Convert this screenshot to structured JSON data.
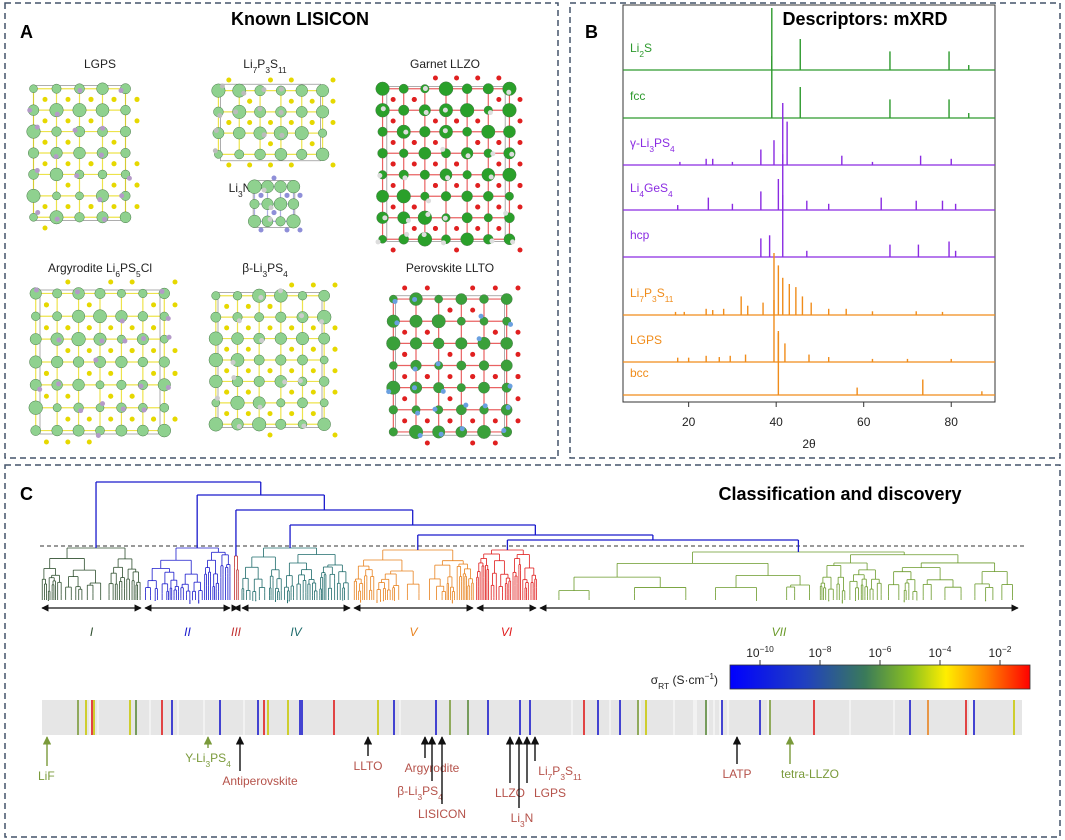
{
  "panel_a": {
    "label": "A",
    "title": "Known LISICON",
    "structures": [
      "LGPS",
      "Li7P3S11",
      "Garnet LLZO",
      "Li3N",
      "Argyrodite Li6PS5Cl",
      "β-Li3PS4",
      "Perovskite LLTO"
    ]
  },
  "panel_b": {
    "label": "B"
  },
  "chart_data": {
    "type": "line",
    "title": "Descriptors: mXRD",
    "x_label": "2θ",
    "xlim": [
      5,
      90
    ],
    "xticks": [
      20,
      40,
      60,
      80
    ],
    "series": [
      {
        "name": "Li2S",
        "color": "#2e9a2e",
        "peaks_x": [
          39,
          45.5,
          66,
          79.5,
          84
        ],
        "heights": [
          1,
          0.5,
          0.3,
          0.3,
          0.08
        ]
      },
      {
        "name": "fcc",
        "color": "#2e9a2e",
        "peaks_x": [
          39,
          45.5,
          66,
          79.5,
          84
        ],
        "heights": [
          1,
          0.5,
          0.3,
          0.3,
          0.08
        ]
      },
      {
        "name": "γ-Li3PS4",
        "color": "#8a2be2",
        "peaks_x": [
          18,
          24,
          25.5,
          30,
          36.5,
          39.5,
          41.5,
          42.5,
          55,
          62,
          73,
          80
        ],
        "heights": [
          0.05,
          0.1,
          0.1,
          0.05,
          0.25,
          0.4,
          1,
          0.7,
          0.15,
          0.05,
          0.15,
          0.1
        ]
      },
      {
        "name": "Li4GeS4",
        "color": "#8a2be2",
        "peaks_x": [
          17.5,
          24.5,
          30,
          36.5,
          40.5,
          41.5,
          47,
          52,
          64,
          72,
          78,
          81
        ],
        "heights": [
          0.08,
          0.2,
          0.1,
          0.3,
          0.5,
          0.9,
          0.15,
          0.1,
          0.2,
          0.15,
          0.15,
          0.1
        ]
      },
      {
        "name": "hcp",
        "color": "#8a2be2",
        "peaks_x": [
          36.5,
          38.5,
          41.5,
          47,
          66,
          72.5,
          79.5,
          81
        ],
        "heights": [
          0.3,
          0.35,
          1,
          0.1,
          0.2,
          0.2,
          0.25,
          0.1
        ]
      },
      {
        "name": "Li7P3S11",
        "color": "#f08c1a",
        "peaks_x": [
          17,
          19,
          24,
          25.5,
          28,
          32,
          33.5,
          37,
          39.5,
          40.5,
          41.5,
          43,
          44.5,
          46,
          48,
          52,
          56,
          62,
          72,
          78
        ],
        "heights": [
          0.05,
          0.05,
          0.1,
          0.08,
          0.1,
          0.3,
          0.15,
          0.2,
          1,
          0.8,
          0.6,
          0.5,
          0.45,
          0.3,
          0.2,
          0.1,
          0.1,
          0.06,
          0.06,
          0.05
        ]
      },
      {
        "name": "LGPS",
        "color": "#f08c1a",
        "peaks_x": [
          17.5,
          20,
          24,
          27,
          29.5,
          33,
          39.5,
          40.5,
          42,
          47.5,
          52,
          62,
          70,
          80
        ],
        "heights": [
          0.07,
          0.07,
          0.1,
          0.08,
          0.1,
          0.12,
          1,
          0.5,
          0.3,
          0.12,
          0.08,
          0.05,
          0.05,
          0.05
        ]
      },
      {
        "name": "bcc",
        "color": "#f08c1a",
        "peaks_x": [
          40.5,
          58.5,
          73.5,
          87
        ],
        "heights": [
          1,
          0.12,
          0.25,
          0.06
        ]
      }
    ]
  },
  "panel_c": {
    "label": "C",
    "title": "Classification and discovery",
    "clusters": [
      {
        "name": "I",
        "color": "#2f4f2f"
      },
      {
        "name": "II",
        "color": "#1a1acc"
      },
      {
        "name": "III",
        "color": "#c03030"
      },
      {
        "name": "IV",
        "color": "#1e6b6b"
      },
      {
        "name": "V",
        "color": "#e8821e"
      },
      {
        "name": "VI",
        "color": "#e01b1b"
      },
      {
        "name": "VII",
        "color": "#6a9a2a"
      }
    ],
    "colorbar": {
      "label": "σRT (S·cm−1)",
      "clim": [
        1e-11,
        0.1
      ],
      "ticks": [
        {
          "value": 1e-10,
          "label": "10−10"
        },
        {
          "value": 1e-08,
          "label": "10−8"
        },
        {
          "value": 1e-06,
          "label": "10−6"
        },
        {
          "value": 0.0001,
          "label": "10−4"
        },
        {
          "value": 0.01,
          "label": "10−2"
        }
      ]
    },
    "annotations": [
      {
        "text": "LiF",
        "color": "#7a9a3a"
      },
      {
        "text": "Y-Li3PS4",
        "color": "#7a9a3a"
      },
      {
        "text": "Antiperovskite",
        "color": "#b5524a"
      },
      {
        "text": "LLTO",
        "color": "#b5524a"
      },
      {
        "text": "Argyrodite",
        "color": "#b5524a"
      },
      {
        "text": "β-Li3PS4",
        "color": "#b5524a"
      },
      {
        "text": "LISICON",
        "color": "#b5524a"
      },
      {
        "text": "LLZO",
        "color": "#b5524a"
      },
      {
        "text": "Li3N",
        "color": "#b5524a"
      },
      {
        "text": "LGPS",
        "color": "#b5524a"
      },
      {
        "text": "Li7P3S11",
        "color": "#b5524a"
      },
      {
        "text": "LATP",
        "color": "#b5524a"
      },
      {
        "text": "tetra-LLZO",
        "color": "#7a9a3a"
      }
    ]
  }
}
